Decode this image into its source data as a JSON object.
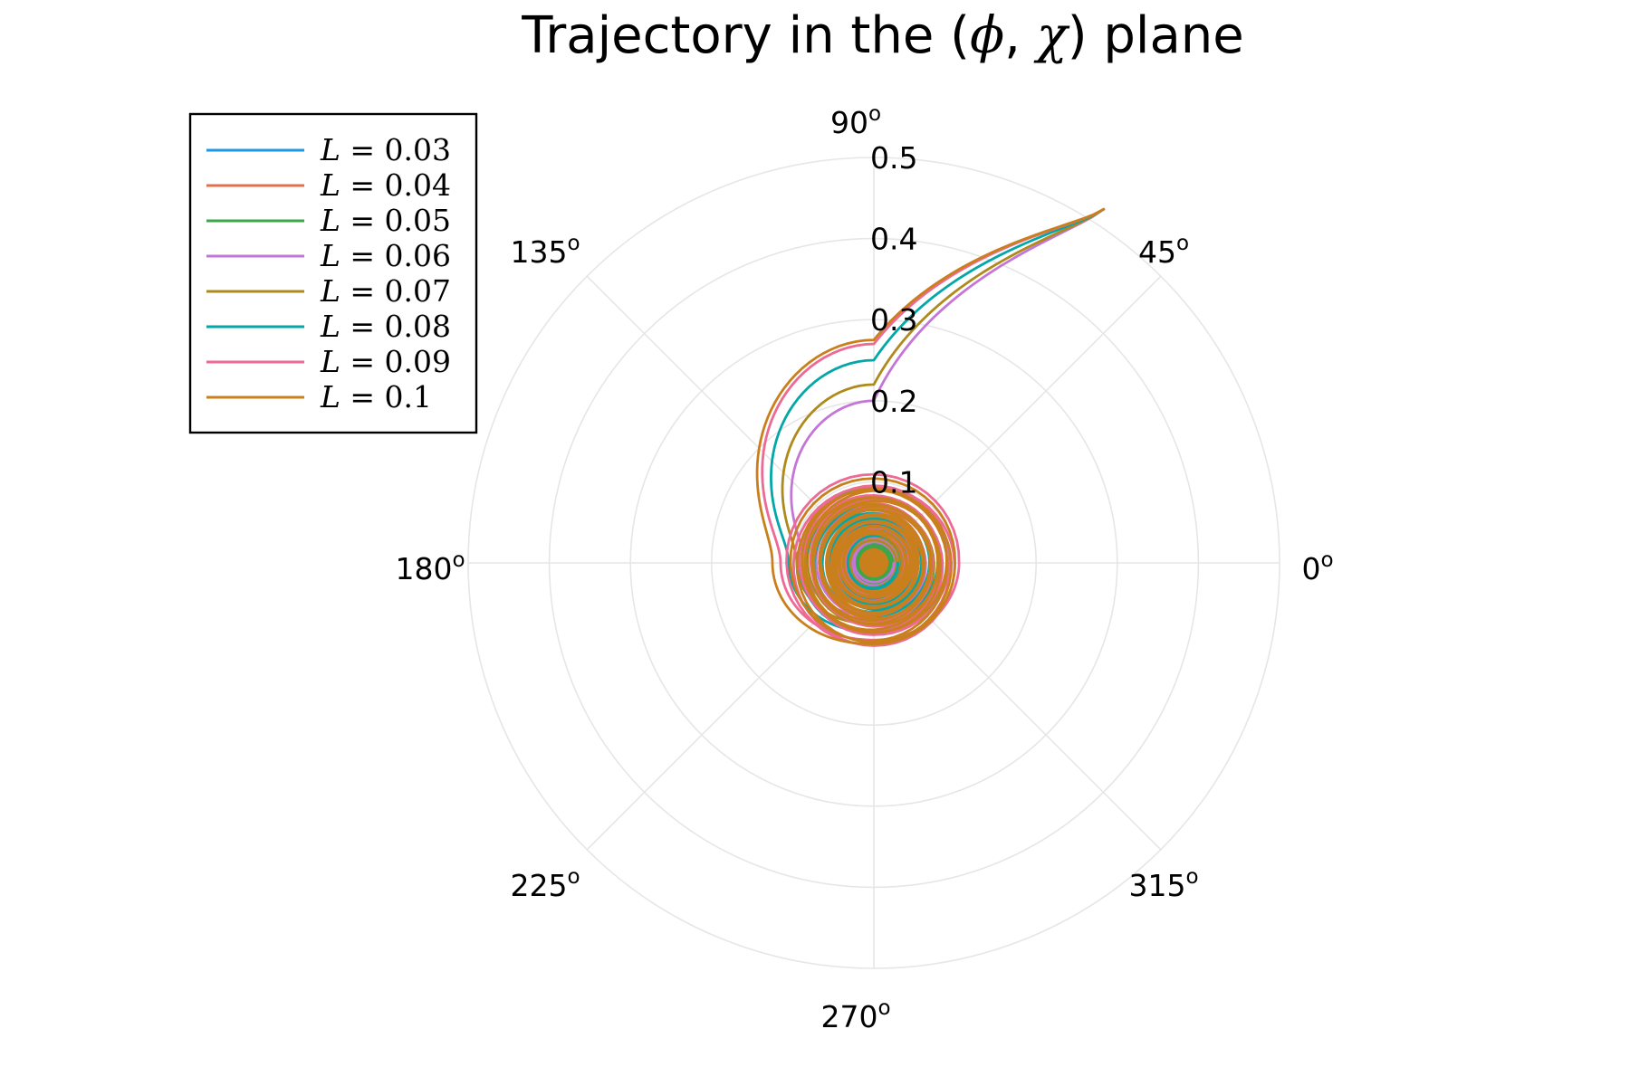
{
  "chart_data": {
    "type": "line",
    "projection": "polar",
    "title": {
      "prefix": "Trajectory in the (",
      "sym1": "ϕ",
      "sep": ", ",
      "sym2": "χ",
      "suffix": ") plane"
    },
    "angular_axis": {
      "unit": "degrees",
      "ticks": [
        0,
        45,
        90,
        135,
        180,
        225,
        270,
        315
      ],
      "labels": [
        "0",
        "45",
        "90",
        "135",
        "180",
        "225",
        "270",
        "315"
      ],
      "degree_mark": "o"
    },
    "radial_axis": {
      "range": [
        0,
        0.5
      ],
      "ticks": [
        0.1,
        0.2,
        0.3,
        0.4,
        0.5
      ],
      "labels": [
        "0.1",
        "0.2",
        "0.3",
        "0.4",
        "0.5"
      ]
    },
    "grid": true,
    "legend_position": "top-left",
    "series": [
      {
        "name": "L = 0.03",
        "param": "0.03",
        "color": "#1f96e6"
      },
      {
        "name": "L = 0.04",
        "param": "0.04",
        "color": "#e2704c"
      },
      {
        "name": "L = 0.05",
        "param": "0.05",
        "color": "#3da649"
      },
      {
        "name": "L = 0.06",
        "param": "0.06",
        "color": "#c476d6"
      },
      {
        "name": "L = 0.07",
        "param": "0.07",
        "color": "#ae8a1c"
      },
      {
        "name": "L = 0.08",
        "param": "0.08",
        "color": "#03a7a7"
      },
      {
        "name": "L = 0.09",
        "param": "0.09",
        "color": "#ec6a94"
      },
      {
        "name": "L = 0.1",
        "param": "0.1",
        "color": "#c9801c"
      }
    ],
    "trajectory": {
      "start_r": 0.52,
      "start_theta_deg": 57,
      "r_at_90deg": {
        "0.06": 0.2,
        "0.07": 0.22,
        "0.08": 0.25,
        "0.09": 0.27,
        "0.1": 0.275
      },
      "r_at_180deg": {
        "0.06": 0.085,
        "0.07": 0.095,
        "0.08": 0.105,
        "0.09": 0.115,
        "0.1": 0.125
      },
      "r_at_270deg": {
        "0.06": 0.065,
        "0.07": 0.075,
        "0.08": 0.085,
        "0.09": 0.095,
        "0.1": 0.1
      },
      "r_at_360deg": {
        "0.06": 0.07,
        "0.07": 0.08,
        "0.08": 0.09,
        "0.09": 0.105,
        "0.1": 0.1
      }
    }
  }
}
